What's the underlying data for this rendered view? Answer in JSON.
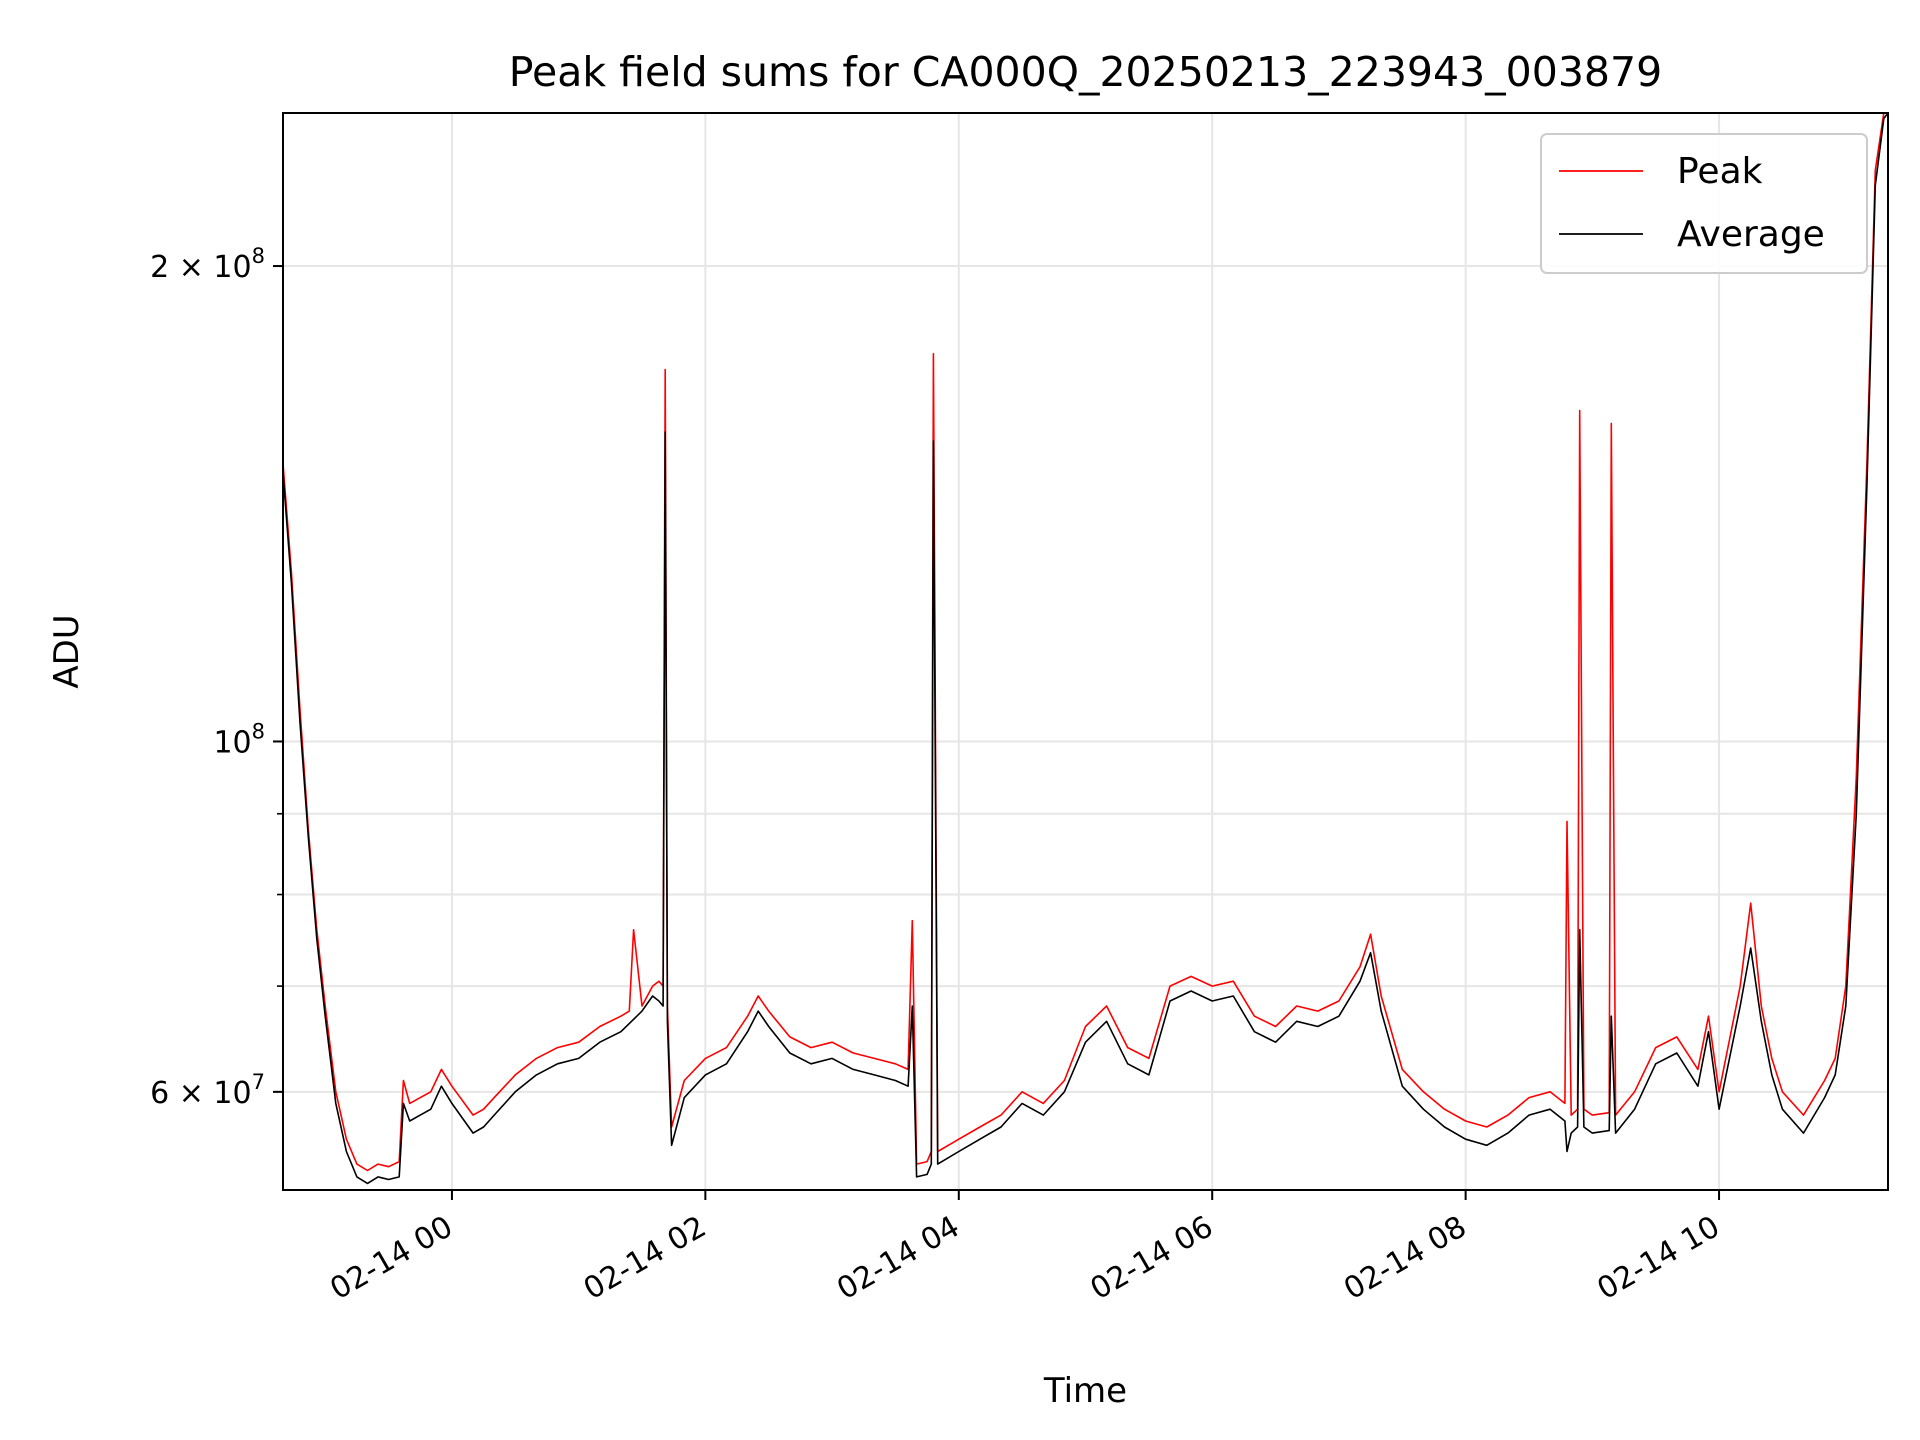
{
  "chart_data": {
    "type": "line",
    "title": "Peak field sums for CA000Q_20250213_223943_003879",
    "xlabel": "Time",
    "ylabel": "ADU",
    "y_scale": "log",
    "ylim": [
      52000000,
      250000000
    ],
    "xlim": [
      "2025-02-13 22:40",
      "2025-02-14 11:20"
    ],
    "x_ticks": [
      {
        "value": "2025-02-14 00:00",
        "label": "02-14 00"
      },
      {
        "value": "2025-02-14 02:00",
        "label": "02-14 02"
      },
      {
        "value": "2025-02-14 04:00",
        "label": "02-14 04"
      },
      {
        "value": "2025-02-14 06:00",
        "label": "02-14 06"
      },
      {
        "value": "2025-02-14 08:00",
        "label": "02-14 08"
      },
      {
        "value": "2025-02-14 10:00",
        "label": "02-14 10"
      }
    ],
    "y_ticks": [
      {
        "value": 60000000,
        "label": "6×10⁷"
      },
      {
        "value": 100000000,
        "label": "10⁸"
      },
      {
        "value": 200000000,
        "label": "2×10⁸"
      }
    ],
    "y_ticks_display": [
      {
        "value": 60000000,
        "base": "6 × 10",
        "exp": "7"
      },
      {
        "value": 100000000,
        "base": "10",
        "exp": "8"
      },
      {
        "value": 200000000,
        "base": "2 × 10",
        "exp": "8"
      }
    ],
    "y_minor_ticks": [
      70000000,
      80000000,
      90000000
    ],
    "grid": true,
    "legend": {
      "position": "top-right"
    },
    "series": [
      {
        "name": "Peak",
        "color": "#ff0000",
        "x": [
          "2025-02-13 22:40",
          "2025-02-13 22:44",
          "2025-02-13 22:48",
          "2025-02-13 22:52",
          "2025-02-13 22:56",
          "2025-02-13 23:00",
          "2025-02-13 23:05",
          "2025-02-13 23:10",
          "2025-02-13 23:15",
          "2025-02-13 23:20",
          "2025-02-13 23:25",
          "2025-02-13 23:30",
          "2025-02-13 23:35",
          "2025-02-13 23:37",
          "2025-02-13 23:40",
          "2025-02-13 23:45",
          "2025-02-13 23:50",
          "2025-02-13 23:55",
          "2025-02-14 00:00",
          "2025-02-14 00:10",
          "2025-02-14 00:15",
          "2025-02-14 00:20",
          "2025-02-14 00:30",
          "2025-02-14 00:40",
          "2025-02-14 00:50",
          "2025-02-14 01:00",
          "2025-02-14 01:10",
          "2025-02-14 01:20",
          "2025-02-14 01:24",
          "2025-02-14 01:26",
          "2025-02-14 01:30",
          "2025-02-14 01:35",
          "2025-02-14 01:38",
          "2025-02-14 01:40",
          "2025-02-14 01:41",
          "2025-02-14 01:42",
          "2025-02-14 01:44",
          "2025-02-14 01:50",
          "2025-02-14 02:00",
          "2025-02-14 02:10",
          "2025-02-14 02:20",
          "2025-02-14 02:25",
          "2025-02-14 02:30",
          "2025-02-14 02:40",
          "2025-02-14 02:50",
          "2025-02-14 03:00",
          "2025-02-14 03:10",
          "2025-02-14 03:20",
          "2025-02-14 03:30",
          "2025-02-14 03:36",
          "2025-02-14 03:38",
          "2025-02-14 03:40",
          "2025-02-14 03:45",
          "2025-02-14 03:47",
          "2025-02-14 03:48",
          "2025-02-14 03:50",
          "2025-02-14 04:00",
          "2025-02-14 04:10",
          "2025-02-14 04:20",
          "2025-02-14 04:30",
          "2025-02-14 04:40",
          "2025-02-14 04:50",
          "2025-02-14 05:00",
          "2025-02-14 05:10",
          "2025-02-14 05:20",
          "2025-02-14 05:30",
          "2025-02-14 05:40",
          "2025-02-14 05:50",
          "2025-02-14 06:00",
          "2025-02-14 06:10",
          "2025-02-14 06:20",
          "2025-02-14 06:30",
          "2025-02-14 06:40",
          "2025-02-14 06:50",
          "2025-02-14 07:00",
          "2025-02-14 07:10",
          "2025-02-14 07:15",
          "2025-02-14 07:20",
          "2025-02-14 07:30",
          "2025-02-14 07:40",
          "2025-02-14 07:50",
          "2025-02-14 08:00",
          "2025-02-14 08:10",
          "2025-02-14 08:20",
          "2025-02-14 08:30",
          "2025-02-14 08:40",
          "2025-02-14 08:47",
          "2025-02-14 08:48",
          "2025-02-14 08:50",
          "2025-02-14 08:53",
          "2025-02-14 08:54",
          "2025-02-14 08:56",
          "2025-02-14 09:00",
          "2025-02-14 09:08",
          "2025-02-14 09:09",
          "2025-02-14 09:11",
          "2025-02-14 09:20",
          "2025-02-14 09:30",
          "2025-02-14 09:40",
          "2025-02-14 09:50",
          "2025-02-14 09:55",
          "2025-02-14 10:00",
          "2025-02-14 10:10",
          "2025-02-14 10:15",
          "2025-02-14 10:20",
          "2025-02-14 10:25",
          "2025-02-14 10:30",
          "2025-02-14 10:40",
          "2025-02-14 10:50",
          "2025-02-14 10:55",
          "2025-02-14 11:00",
          "2025-02-14 11:05",
          "2025-02-14 11:10",
          "2025-02-14 11:14",
          "2025-02-14 11:18",
          "2025-02-14 11:20"
        ],
        "y": [
          150000000,
          128000000,
          105000000,
          88000000,
          76000000,
          68000000,
          60000000,
          56000000,
          54000000,
          53500000,
          54000000,
          53800000,
          54200000,
          61000000,
          59000000,
          59500000,
          60000000,
          62000000,
          60500000,
          58000000,
          58500000,
          59500000,
          61500000,
          63000000,
          64000000,
          64500000,
          66000000,
          67000000,
          67500000,
          76000000,
          68000000,
          70000000,
          70500000,
          70000000,
          172000000,
          68000000,
          57000000,
          61000000,
          63000000,
          64000000,
          67000000,
          69000000,
          67500000,
          65000000,
          64000000,
          64500000,
          63500000,
          63000000,
          62500000,
          62000000,
          77000000,
          54000000,
          54200000,
          55000000,
          176000000,
          55000000,
          56000000,
          57000000,
          58000000,
          60000000,
          59000000,
          61000000,
          66000000,
          68000000,
          64000000,
          63000000,
          70000000,
          71000000,
          70000000,
          70500000,
          67000000,
          66000000,
          68000000,
          67500000,
          68500000,
          72000000,
          75500000,
          69000000,
          62000000,
          60000000,
          58500000,
          57500000,
          57000000,
          58000000,
          59500000,
          60000000,
          59000000,
          89000000,
          58000000,
          58500000,
          162000000,
          58500000,
          58000000,
          58200000,
          159000000,
          58000000,
          60000000,
          64000000,
          65000000,
          62000000,
          67000000,
          60000000,
          70000000,
          79000000,
          68000000,
          63000000,
          60000000,
          58000000,
          61000000,
          63000000,
          70000000,
          95000000,
          150000000,
          230000000,
          250000000,
          252000000
        ]
      },
      {
        "name": "Average",
        "color": "#000000",
        "x": [
          "2025-02-13 22:40",
          "2025-02-13 22:44",
          "2025-02-13 22:48",
          "2025-02-13 22:52",
          "2025-02-13 22:56",
          "2025-02-13 23:00",
          "2025-02-13 23:05",
          "2025-02-13 23:10",
          "2025-02-13 23:15",
          "2025-02-13 23:20",
          "2025-02-13 23:25",
          "2025-02-13 23:30",
          "2025-02-13 23:35",
          "2025-02-13 23:37",
          "2025-02-13 23:40",
          "2025-02-13 23:45",
          "2025-02-13 23:50",
          "2025-02-13 23:55",
          "2025-02-14 00:00",
          "2025-02-14 00:10",
          "2025-02-14 00:15",
          "2025-02-14 00:20",
          "2025-02-14 00:30",
          "2025-02-14 00:40",
          "2025-02-14 00:50",
          "2025-02-14 01:00",
          "2025-02-14 01:10",
          "2025-02-14 01:20",
          "2025-02-14 01:30",
          "2025-02-14 01:35",
          "2025-02-14 01:38",
          "2025-02-14 01:40",
          "2025-02-14 01:41",
          "2025-02-14 01:42",
          "2025-02-14 01:44",
          "2025-02-14 01:50",
          "2025-02-14 02:00",
          "2025-02-14 02:10",
          "2025-02-14 02:20",
          "2025-02-14 02:25",
          "2025-02-14 02:30",
          "2025-02-14 02:40",
          "2025-02-14 02:50",
          "2025-02-14 03:00",
          "2025-02-14 03:10",
          "2025-02-14 03:20",
          "2025-02-14 03:30",
          "2025-02-14 03:36",
          "2025-02-14 03:38",
          "2025-02-14 03:40",
          "2025-02-14 03:45",
          "2025-02-14 03:47",
          "2025-02-14 03:48",
          "2025-02-14 03:50",
          "2025-02-14 04:00",
          "2025-02-14 04:10",
          "2025-02-14 04:20",
          "2025-02-14 04:30",
          "2025-02-14 04:40",
          "2025-02-14 04:50",
          "2025-02-14 05:00",
          "2025-02-14 05:10",
          "2025-02-14 05:20",
          "2025-02-14 05:30",
          "2025-02-14 05:40",
          "2025-02-14 05:50",
          "2025-02-14 06:00",
          "2025-02-14 06:10",
          "2025-02-14 06:20",
          "2025-02-14 06:30",
          "2025-02-14 06:40",
          "2025-02-14 06:50",
          "2025-02-14 07:00",
          "2025-02-14 07:10",
          "2025-02-14 07:15",
          "2025-02-14 07:20",
          "2025-02-14 07:30",
          "2025-02-14 07:40",
          "2025-02-14 07:50",
          "2025-02-14 08:00",
          "2025-02-14 08:10",
          "2025-02-14 08:20",
          "2025-02-14 08:30",
          "2025-02-14 08:40",
          "2025-02-14 08:47",
          "2025-02-14 08:48",
          "2025-02-14 08:50",
          "2025-02-14 08:53",
          "2025-02-14 08:54",
          "2025-02-14 08:56",
          "2025-02-14 09:00",
          "2025-02-14 09:08",
          "2025-02-14 09:09",
          "2025-02-14 09:11",
          "2025-02-14 09:20",
          "2025-02-14 09:30",
          "2025-02-14 09:40",
          "2025-02-14 09:50",
          "2025-02-14 09:55",
          "2025-02-14 10:00",
          "2025-02-14 10:10",
          "2025-02-14 10:15",
          "2025-02-14 10:20",
          "2025-02-14 10:25",
          "2025-02-14 10:30",
          "2025-02-14 10:40",
          "2025-02-14 10:50",
          "2025-02-14 10:55",
          "2025-02-14 11:00",
          "2025-02-14 11:05",
          "2025-02-14 11:10",
          "2025-02-14 11:14",
          "2025-02-14 11:18",
          "2025-02-14 11:20"
        ],
        "y": [
          148000000,
          126000000,
          103000000,
          87000000,
          75000000,
          67000000,
          59000000,
          55000000,
          53000000,
          52500000,
          53000000,
          52800000,
          53000000,
          59000000,
          57500000,
          58000000,
          58500000,
          60500000,
          59000000,
          56500000,
          57000000,
          58000000,
          60000000,
          61500000,
          62500000,
          63000000,
          64500000,
          65500000,
          67500000,
          69000000,
          68500000,
          68000000,
          157000000,
          66500000,
          55500000,
          59500000,
          61500000,
          62500000,
          65500000,
          67500000,
          66000000,
          63500000,
          62500000,
          63000000,
          62000000,
          61500000,
          61000000,
          60500000,
          68000000,
          53000000,
          53200000,
          54000000,
          155000000,
          54000000,
          55000000,
          56000000,
          57000000,
          59000000,
          58000000,
          60000000,
          64500000,
          66500000,
          62500000,
          61500000,
          68500000,
          69500000,
          68500000,
          69000000,
          65500000,
          64500000,
          66500000,
          66000000,
          67000000,
          70500000,
          73500000,
          67500000,
          60500000,
          58500000,
          57000000,
          56000000,
          55500000,
          56500000,
          58000000,
          58500000,
          57500000,
          55000000,
          56500000,
          57000000,
          76000000,
          57000000,
          56500000,
          56700000,
          67000000,
          56500000,
          58500000,
          62500000,
          63500000,
          60500000,
          65500000,
          58500000,
          68000000,
          74000000,
          66500000,
          61500000,
          58500000,
          56500000,
          59500000,
          61500000,
          68000000,
          90000000,
          145000000,
          225000000,
          248000000,
          250000000
        ]
      }
    ]
  }
}
